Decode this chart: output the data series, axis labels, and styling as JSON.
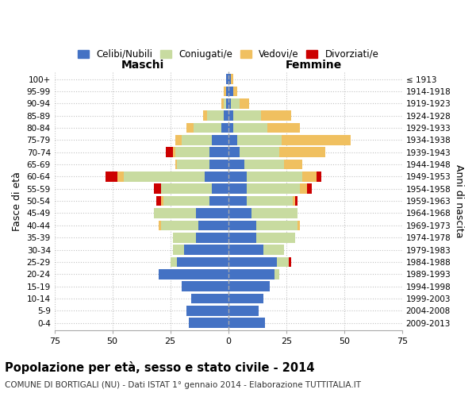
{
  "age_groups": [
    "0-4",
    "5-9",
    "10-14",
    "15-19",
    "20-24",
    "25-29",
    "30-34",
    "35-39",
    "40-44",
    "45-49",
    "50-54",
    "55-59",
    "60-64",
    "65-69",
    "70-74",
    "75-79",
    "80-84",
    "85-89",
    "90-94",
    "95-99",
    "100+"
  ],
  "birth_years": [
    "2009-2013",
    "2004-2008",
    "1999-2003",
    "1994-1998",
    "1989-1993",
    "1984-1988",
    "1979-1983",
    "1974-1978",
    "1969-1973",
    "1964-1968",
    "1959-1963",
    "1954-1958",
    "1949-1953",
    "1944-1948",
    "1939-1943",
    "1934-1938",
    "1929-1933",
    "1924-1928",
    "1919-1923",
    "1914-1918",
    "≤ 1913"
  ],
  "males": {
    "celibi": [
      17,
      18,
      16,
      20,
      30,
      22,
      19,
      14,
      13,
      14,
      8,
      7,
      10,
      8,
      8,
      7,
      3,
      2,
      1,
      1,
      1
    ],
    "coniugati": [
      0,
      0,
      0,
      0,
      0,
      3,
      5,
      10,
      16,
      18,
      20,
      22,
      35,
      14,
      15,
      13,
      12,
      7,
      1,
      0,
      0
    ],
    "vedovi": [
      0,
      0,
      0,
      0,
      0,
      0,
      0,
      0,
      1,
      0,
      1,
      0,
      3,
      1,
      1,
      3,
      3,
      2,
      1,
      1,
      0
    ],
    "divorziati": [
      0,
      0,
      0,
      0,
      0,
      0,
      0,
      0,
      0,
      0,
      2,
      3,
      5,
      0,
      3,
      0,
      0,
      0,
      0,
      0,
      0
    ]
  },
  "females": {
    "nubili": [
      16,
      13,
      15,
      18,
      20,
      21,
      15,
      12,
      12,
      10,
      8,
      8,
      8,
      7,
      5,
      4,
      2,
      2,
      1,
      2,
      1
    ],
    "coniugate": [
      0,
      0,
      0,
      0,
      2,
      5,
      9,
      17,
      18,
      20,
      20,
      23,
      24,
      17,
      17,
      19,
      15,
      12,
      4,
      0,
      0
    ],
    "vedove": [
      0,
      0,
      0,
      0,
      0,
      0,
      0,
      0,
      1,
      0,
      1,
      3,
      6,
      8,
      20,
      30,
      14,
      13,
      4,
      2,
      1
    ],
    "divorziate": [
      0,
      0,
      0,
      0,
      0,
      1,
      0,
      0,
      0,
      0,
      1,
      2,
      2,
      0,
      0,
      0,
      0,
      0,
      0,
      0,
      0
    ]
  },
  "colors": {
    "celibi": "#4472C4",
    "coniugati": "#c8dba0",
    "vedovi": "#F0C060",
    "divorziati": "#CC0000"
  },
  "title": "Popolazione per età, sesso e stato civile - 2014",
  "subtitle": "COMUNE DI BORTIGALI (NU) - Dati ISTAT 1° gennaio 2014 - Elaborazione TUTTITALIA.IT",
  "xlabel_left": "Maschi",
  "xlabel_right": "Femmine",
  "ylabel_left": "Fasce di età",
  "ylabel_right": "Anni di nascita",
  "xlim": 75,
  "legend_labels": [
    "Celibi/Nubili",
    "Coniugati/e",
    "Vedovi/e",
    "Divorziati/e"
  ]
}
